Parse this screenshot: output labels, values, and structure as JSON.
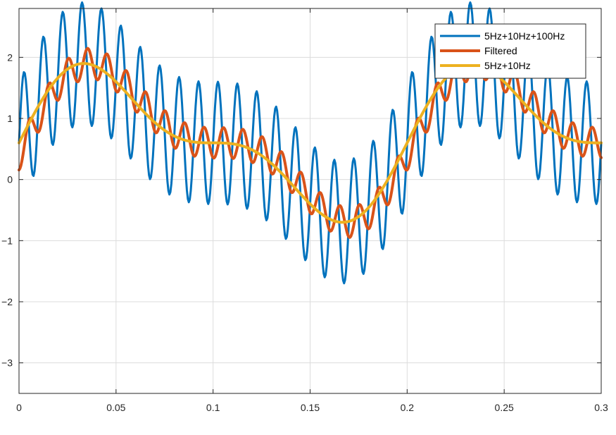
{
  "chart_data": {
    "type": "line",
    "title": "",
    "xlabel": "",
    "ylabel": "",
    "xlim": [
      0,
      0.3
    ],
    "ylim": [
      -3.5,
      2.8
    ],
    "xticks": [
      0,
      0.05,
      0.1,
      0.15,
      0.2,
      0.25,
      0.3
    ],
    "xtick_labels": [
      "0",
      "0.05",
      "0.1",
      "0.15",
      "0.2",
      "0.25",
      "0.3"
    ],
    "yticks": [
      -3,
      -2,
      -1,
      0,
      1,
      2
    ],
    "ytick_labels": [
      "−3",
      "−2",
      "−1",
      "0",
      "1",
      "2"
    ],
    "grid": true,
    "legend_position": "top-right",
    "series": [
      {
        "name": "5Hz+10Hz+100Hz",
        "color": "#0072BD",
        "formula": "sin(2*pi*5*t) + 0.5*sin(2*pi*10*t) + sin(2*pi*100*t) + 0.6",
        "t_range": [
          0,
          0.3
        ],
        "sample_step": 0.0005
      },
      {
        "name": "Filtered",
        "color": "#D95319",
        "formula": "sin(2*pi*5*(t-0.0032)) + 0.5*sin(2*pi*10*(t-0.0032)) + 0.25*sin(2*pi*100*t - 1.8) + 0.6",
        "t_range": [
          0,
          0.3
        ],
        "sample_step": 0.0005
      },
      {
        "name": "5Hz+10Hz",
        "color": "#EDB120",
        "formula": "sin(2*pi*5*t) + 0.5*sin(2*pi*10*t) + 0.6",
        "t_range": [
          0,
          0.3
        ],
        "sample_step": 0.0005
      }
    ]
  }
}
